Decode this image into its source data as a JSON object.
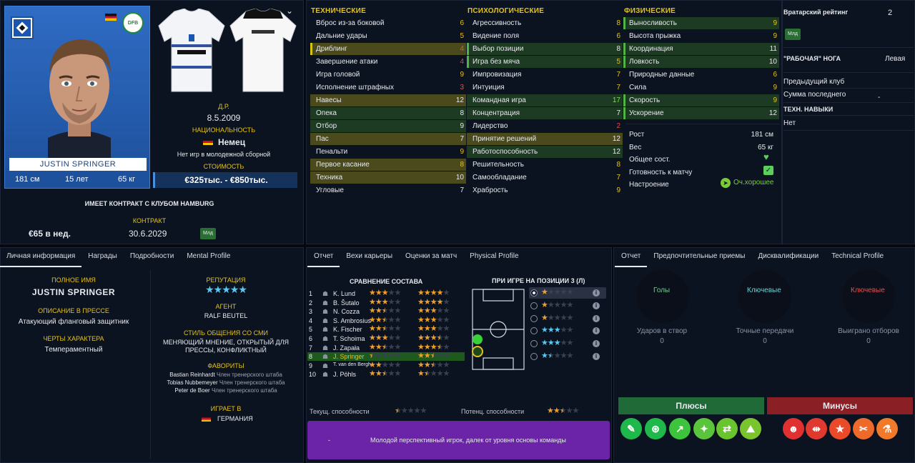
{
  "player": {
    "name_card": "JUSTIN SPRINGER",
    "height": "181 см",
    "age": "15 лет",
    "weight": "65 кг",
    "dob_label": "Д.Р.",
    "dob": "8.5.2009",
    "nationality_label": "НАЦИОНАЛЬНОСТЬ",
    "nationality": "Немец",
    "youth_caps": "Нет игр в молодежной сборной",
    "value_label": "СТОИМОСТЬ",
    "value": "€325тыс. - €850тыс.",
    "contract_club": "ИМЕЕТ КОНТРАКТ С КЛУБОМ HAMBURG",
    "contract_label": "КОНТРАКТ",
    "wage": "€65 в нед.",
    "contract_end": "30.6.2029",
    "squad_badge": "Млд"
  },
  "attributes": {
    "tech_header": "ТЕХНИЧЕСКИЕ",
    "mental_header": "ПСИХОЛОГИЧЕСКИЕ",
    "phys_header": "ФИЗИЧЕСКИЕ",
    "technical": [
      {
        "name": "Вброс из-за боковой",
        "value": "6"
      },
      {
        "name": "Дальние удары",
        "value": "5"
      },
      {
        "name": "Дриблинг",
        "value": "4"
      },
      {
        "name": "Завершение атаки",
        "value": "4"
      },
      {
        "name": "Игра головой",
        "value": "9"
      },
      {
        "name": "Исполнение штрафных",
        "value": "3"
      },
      {
        "name": "Навесы",
        "value": "12"
      },
      {
        "name": "Опека",
        "value": "8"
      },
      {
        "name": "Отбор",
        "value": "9"
      },
      {
        "name": "Пас",
        "value": "7"
      },
      {
        "name": "Пенальти",
        "value": "9"
      },
      {
        "name": "Первое касание",
        "value": "8"
      },
      {
        "name": "Техника",
        "value": "10"
      },
      {
        "name": "Угловые",
        "value": "7"
      }
    ],
    "mental": [
      {
        "name": "Агрессивность",
        "value": "8"
      },
      {
        "name": "Видение поля",
        "value": "6"
      },
      {
        "name": "Выбор позиции",
        "value": "8"
      },
      {
        "name": "Игра без мяча",
        "value": "5"
      },
      {
        "name": "Импровизация",
        "value": "7"
      },
      {
        "name": "Интуиция",
        "value": "7"
      },
      {
        "name": "Командная игра",
        "value": "17"
      },
      {
        "name": "Концентрация",
        "value": "7"
      },
      {
        "name": "Лидерство",
        "value": "2"
      },
      {
        "name": "Принятие решений",
        "value": "12"
      },
      {
        "name": "Работоспособность",
        "value": "12"
      },
      {
        "name": "Решительность",
        "value": "8"
      },
      {
        "name": "Самообладание",
        "value": "7"
      },
      {
        "name": "Храбрость",
        "value": "9"
      }
    ],
    "physical": [
      {
        "name": "Выносливость",
        "value": "9"
      },
      {
        "name": "Высота прыжка",
        "value": "9"
      },
      {
        "name": "Координация",
        "value": "11"
      },
      {
        "name": "Ловкость",
        "value": "10"
      },
      {
        "name": "Природные данные",
        "value": "6"
      },
      {
        "name": "Сила",
        "value": "9"
      },
      {
        "name": "Скорость",
        "value": "9"
      },
      {
        "name": "Ускорение",
        "value": "12"
      }
    ],
    "phys_info": [
      {
        "name": "Рост",
        "value": "181 см"
      },
      {
        "name": "Вес",
        "value": "65 кг"
      },
      {
        "name": "Общее сост.",
        "value": ""
      },
      {
        "name": "Готовность к матчу",
        "value": ""
      },
      {
        "name": "Настроение",
        "value": "Оч.хорошее"
      }
    ]
  },
  "side": {
    "gk_rating_label": "Вратарский рейтинг",
    "gk_rating": "2",
    "badge": "Млд",
    "foot_label": "\"РАБОЧАЯ\" НОГА",
    "foot": "Левая",
    "prev_club": "Предыдущий клуб",
    "last_fee": "Сумма последнего",
    "last_fee_val": "-",
    "tech_skills": "ТЕХН. НАВЫКИ",
    "tech_skills_val": "Нет"
  },
  "bottom_left": {
    "tabs": [
      "Личная информация",
      "Награды",
      "Подробности",
      "Mental Profile"
    ],
    "full_name_label": "ПОЛНОЕ ИМЯ",
    "full_name": "JUSTIN SPRINGER",
    "press_label": "ОПИСАНИЕ В ПРЕССЕ",
    "press": "Атакующий фланговый защитник",
    "traits_label": "ЧЕРТЫ ХАРАКТЕРА",
    "traits": "Темпераментный",
    "rep_label": "РЕПУТАЦИЯ",
    "agent_label": "АГЕНТ",
    "agent": "RALF BEUTEL",
    "media_label": "СТИЛЬ ОБЩЕНИЯ СО СМИ",
    "media": "МЕНЯЮЩИЙ МНЕНИЕ, ОТКРЫТЫЙ ДЛЯ ПРЕССЫ, КОНФЛИКТНЫЙ",
    "fav_label": "ФАВОРИТЫ",
    "favorites": [
      {
        "name": "Bastian Reinhardt",
        "role": "Член тренерского штаба"
      },
      {
        "name": "Tobias Nubbemeyer",
        "role": "Член тренерского штаба"
      },
      {
        "name": "Peter de Boer",
        "role": "Член тренерского штаба"
      }
    ],
    "plays_label": "ИГРАЕТ В",
    "plays": "ГЕРМАНИЯ"
  },
  "bottom_mid": {
    "tabs": [
      "Отчет",
      "Вехи карьеры",
      "Оценки за матч",
      "Physical Profile"
    ],
    "compare_title": "СРАВНЕНИЕ СОСТАВА",
    "position_title": "ПРИ ИГРЕ НА ПОЗИЦИИ 3 (Л)",
    "squad": [
      {
        "n": "1",
        "name": "K. Lund",
        "cur": 3,
        "pot": 4
      },
      {
        "n": "2",
        "name": "B. Šutalo",
        "cur": 3,
        "pot": 4
      },
      {
        "n": "3",
        "name": "N. Cozza",
        "cur": 2.5,
        "pot": 3
      },
      {
        "n": "4",
        "name": "S. Ambrosius",
        "cur": 2.5,
        "pot": 3
      },
      {
        "n": "5",
        "name": "K. Fischer",
        "cur": 2.5,
        "pot": 3
      },
      {
        "n": "6",
        "name": "T. Schoima",
        "cur": 3,
        "pot": 3.5
      },
      {
        "n": "7",
        "name": "J. Zapała",
        "cur": 2.5,
        "pot": 3.5
      },
      {
        "n": "8",
        "name": "J. Springer",
        "cur": 0.5,
        "pot": 2.5
      },
      {
        "n": "9",
        "name": "T. van den Bergh",
        "cur": 2,
        "pot": 2.5
      },
      {
        "n": "10",
        "name": "J. Pöhls",
        "cur": 2.5,
        "pot": 1.5
      }
    ],
    "positions": [
      {
        "stars": 1,
        "color": "#f0a02a"
      },
      {
        "stars": 1,
        "color": "#f0a02a"
      },
      {
        "stars": 1,
        "color": "#f0a02a"
      },
      {
        "stars": 3,
        "color": "#5ac8f0"
      },
      {
        "stars": 3,
        "color": "#5ac8f0"
      },
      {
        "stars": 1.5,
        "color": "#5ac8f0"
      }
    ],
    "cur_ability": "Текущ. способности",
    "pot_ability": "Потенц. способности",
    "cur_stars": 0.5,
    "pot_stars": 2.5,
    "report_dash": "-",
    "report_text": "Молодой перспективный игрок, далек от уровня основы команды"
  },
  "bottom_right": {
    "tabs": [
      "Отчет",
      "Предпочтительные приемы",
      "Дисквалификации",
      "Technical Profile"
    ],
    "goals": "Голы",
    "key1": "Ключевые",
    "key2": "Ключевые",
    "shots_label": "Ударов в створ",
    "shots": "0",
    "passes_label": "Точные передачи",
    "passes": "0",
    "tackles_label": "Выиграно отборов",
    "tackles": "0",
    "pros": "Плюсы",
    "cons": "Минусы"
  }
}
